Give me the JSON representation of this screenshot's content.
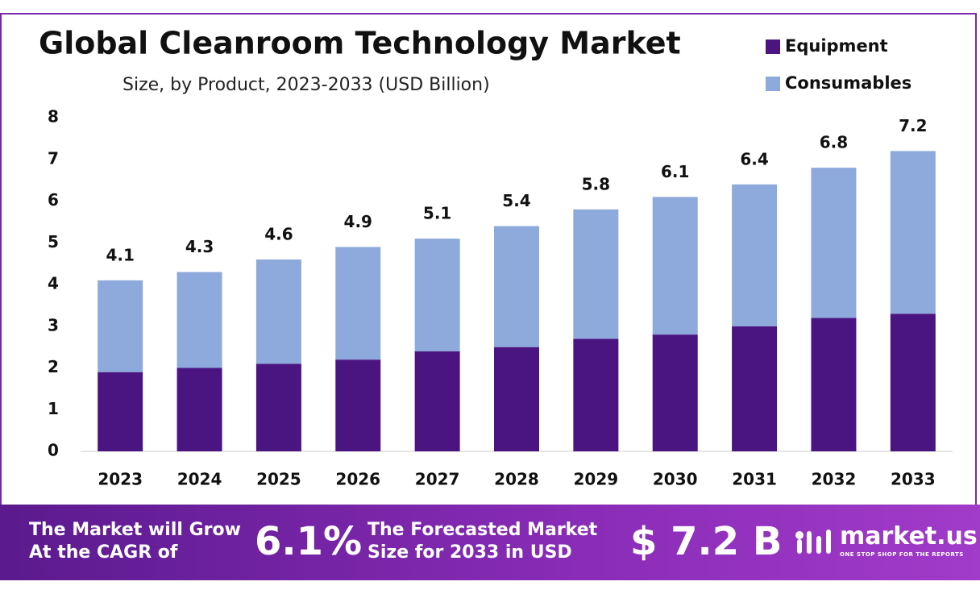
{
  "chart_data": {
    "type": "stacked_bar",
    "title": "Global Cleanroom Technology Market",
    "subtitle": "Size, by Product, 2023-2033 (USD Billion)",
    "categories": [
      "2023",
      "2024",
      "2025",
      "2026",
      "2027",
      "2028",
      "2029",
      "2030",
      "2031",
      "2032",
      "2033"
    ],
    "series": [
      {
        "name": "Equipment",
        "color": "#4b1581",
        "values": [
          1.9,
          2.0,
          2.1,
          2.2,
          2.4,
          2.5,
          2.7,
          2.8,
          3.0,
          3.2,
          3.3
        ]
      },
      {
        "name": "Consumables",
        "color": "#8eaadc",
        "values": [
          2.2,
          2.3,
          2.5,
          2.7,
          2.7,
          2.9,
          3.1,
          3.3,
          3.4,
          3.6,
          3.9
        ]
      }
    ],
    "totals": [
      4.1,
      4.3,
      4.6,
      4.9,
      5.1,
      5.4,
      5.8,
      6.1,
      6.4,
      6.8,
      7.2
    ],
    "ylim": [
      0,
      8
    ],
    "yticks": [
      0,
      1,
      2,
      3,
      4,
      5,
      6,
      7,
      8
    ],
    "grid": false,
    "legend": "top-right"
  },
  "banner": {
    "cagr_text": "The Market will Grow At the CAGR of",
    "cagr_value": "6.1%",
    "forecast_text": "The Forecasted Market Size for 2033 in USD",
    "forecast_value": "$ 7.2 B",
    "brand": "market.us",
    "tagline": "ONE STOP SHOP FOR THE REPORTS"
  }
}
